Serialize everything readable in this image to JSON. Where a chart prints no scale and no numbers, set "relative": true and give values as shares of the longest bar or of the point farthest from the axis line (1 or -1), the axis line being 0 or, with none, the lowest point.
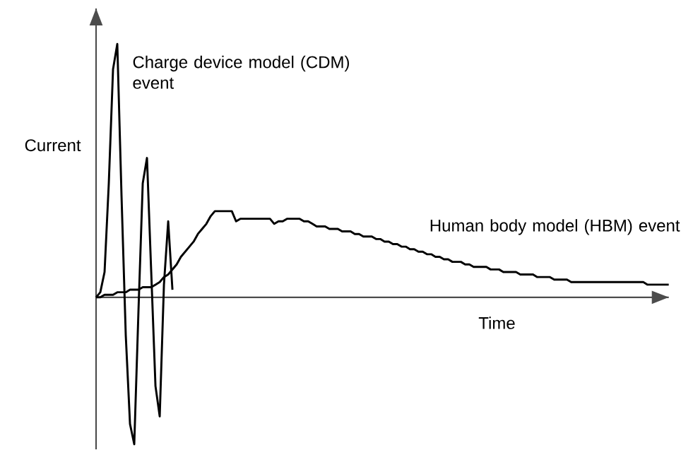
{
  "chart_data": {
    "type": "line",
    "relative": true,
    "xlabel": "Time",
    "ylabel": "Current",
    "marker": "none",
    "line_style": "solid",
    "categories": [
      null,
      null,
      null,
      null,
      null,
      null,
      null,
      null,
      null,
      null,
      null,
      null,
      null,
      null,
      null,
      null,
      null,
      null,
      null,
      null,
      null,
      null,
      null,
      null,
      null,
      null,
      null,
      null,
      null,
      null,
      null,
      null,
      null,
      null,
      null,
      null,
      null,
      null,
      null,
      null,
      null,
      null,
      null,
      null,
      null,
      null,
      null,
      null,
      null,
      null,
      null,
      null,
      null,
      null,
      null,
      null,
      null,
      null,
      null,
      null,
      null,
      null,
      null,
      null,
      null,
      null,
      null,
      null,
      null,
      null,
      null,
      null,
      null,
      null,
      null,
      null,
      null,
      null,
      null,
      null,
      null,
      null,
      null,
      null,
      null,
      null,
      null,
      null,
      null,
      null,
      null,
      null,
      null,
      null,
      null,
      null,
      null,
      null,
      null,
      null,
      null,
      null,
      null,
      null,
      null,
      null,
      null,
      null,
      null,
      null,
      null,
      null,
      null,
      null,
      null,
      null,
      null,
      null,
      null,
      null,
      null,
      null,
      null,
      null,
      null,
      null,
      null,
      null,
      null,
      null,
      null,
      null,
      null,
      null,
      null,
      null
    ],
    "series": [
      {
        "name": "Charge device model (CDM) event",
        "color": "#000000",
        "values": [
          0,
          0.02,
          0.1,
          0.45,
          0.9,
          1.0,
          0.4,
          -0.15,
          -0.5,
          -0.58,
          -0.05,
          0.45,
          0.55,
          0.1,
          -0.35,
          -0.47,
          0.05,
          0.3,
          0.03,
          null,
          null,
          null,
          null,
          null,
          null,
          null,
          null,
          null,
          null,
          null,
          null,
          null,
          null,
          null,
          null,
          null,
          null,
          null,
          null,
          null,
          null,
          null,
          null,
          null,
          null,
          null,
          null,
          null,
          null,
          null,
          null,
          null,
          null,
          null,
          null,
          null,
          null,
          null,
          null,
          null,
          null,
          null,
          null,
          null,
          null,
          null,
          null,
          null,
          null,
          null,
          null,
          null,
          null,
          null,
          null,
          null,
          null,
          null,
          null,
          null,
          null,
          null,
          null,
          null,
          null,
          null,
          null,
          null,
          null,
          null,
          null,
          null,
          null,
          null,
          null,
          null,
          null,
          null,
          null,
          null,
          null,
          null,
          null,
          null,
          null,
          null,
          null,
          null,
          null,
          null,
          null,
          null,
          null,
          null,
          null,
          null,
          null,
          null,
          null,
          null,
          null,
          null,
          null,
          null,
          null,
          null,
          null,
          null,
          null,
          null,
          null,
          null,
          null,
          null,
          null,
          null
        ]
      },
      {
        "name": "Human body model (HBM) event",
        "color": "#000000",
        "values": [
          0,
          0,
          0.01,
          0.01,
          0.01,
          0.02,
          0.02,
          0.02,
          0.03,
          0.03,
          0.03,
          0.04,
          0.04,
          0.04,
          0.05,
          0.06,
          0.08,
          0.09,
          0.11,
          0.13,
          0.16,
          0.18,
          0.2,
          0.22,
          0.25,
          0.27,
          0.29,
          0.32,
          0.34,
          0.34,
          0.34,
          0.34,
          0.34,
          0.3,
          0.31,
          0.31,
          0.31,
          0.31,
          0.31,
          0.31,
          0.31,
          0.31,
          0.29,
          0.3,
          0.3,
          0.31,
          0.31,
          0.31,
          0.31,
          0.3,
          0.3,
          0.29,
          0.28,
          0.28,
          0.28,
          0.27,
          0.27,
          0.27,
          0.26,
          0.26,
          0.26,
          0.25,
          0.25,
          0.24,
          0.24,
          0.24,
          0.23,
          0.23,
          0.22,
          0.22,
          0.21,
          0.21,
          0.2,
          0.2,
          0.19,
          0.19,
          0.18,
          0.18,
          0.17,
          0.17,
          0.16,
          0.16,
          0.15,
          0.15,
          0.14,
          0.14,
          0.14,
          0.13,
          0.13,
          0.12,
          0.12,
          0.12,
          0.12,
          0.11,
          0.11,
          0.11,
          0.1,
          0.1,
          0.1,
          0.1,
          0.09,
          0.09,
          0.09,
          0.09,
          0.08,
          0.08,
          0.08,
          0.08,
          0.07,
          0.07,
          0.07,
          0.07,
          0.06,
          0.06,
          0.06,
          0.06,
          0.06,
          0.06,
          0.06,
          0.06,
          0.06,
          0.06,
          0.06,
          0.06,
          0.06,
          0.06,
          0.06,
          0.06,
          0.06,
          0.06,
          0.05,
          0.05,
          0.05,
          0.05,
          0.05,
          0.05
        ]
      }
    ]
  }
}
